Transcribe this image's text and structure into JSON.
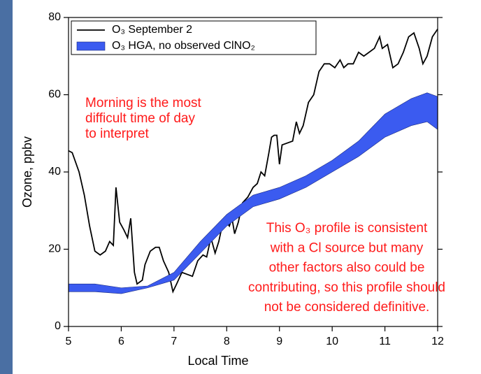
{
  "chart_data": {
    "type": "line",
    "x_label": "Local Time",
    "y_label": "Ozone, ppbv",
    "xlim": [
      5,
      12
    ],
    "xticks": [
      5,
      6,
      7,
      8,
      9,
      10,
      11,
      12
    ],
    "ylim": [
      0,
      80
    ],
    "yticks": [
      0,
      20,
      40,
      60,
      80
    ],
    "legend": "upper left",
    "series": [
      {
        "name": "O₃ September 2",
        "type": "line",
        "color": "#000000",
        "x": [
          5.0,
          5.07,
          5.2,
          5.3,
          5.4,
          5.5,
          5.6,
          5.7,
          5.78,
          5.85,
          5.9,
          5.97,
          6.05,
          6.12,
          6.18,
          6.25,
          6.3,
          6.4,
          6.45,
          6.55,
          6.65,
          6.72,
          6.8,
          6.9,
          6.98,
          7.05,
          7.15,
          7.25,
          7.35,
          7.45,
          7.55,
          7.62,
          7.7,
          7.78,
          7.85,
          7.92,
          8.0,
          8.05,
          8.1,
          8.15,
          8.22,
          8.3,
          8.4,
          8.5,
          8.58,
          8.65,
          8.72,
          8.8,
          8.85,
          8.9,
          8.95,
          9.0,
          9.05,
          9.15,
          9.25,
          9.32,
          9.38,
          9.45,
          9.55,
          9.65,
          9.75,
          9.85,
          9.95,
          10.05,
          10.15,
          10.22,
          10.3,
          10.4,
          10.5,
          10.6,
          10.7,
          10.8,
          10.9,
          10.95,
          11.05,
          11.15,
          11.25,
          11.35,
          11.45,
          11.55,
          11.65,
          11.72,
          11.8,
          11.9,
          12.0
        ],
        "values": [
          45.5,
          45,
          40,
          34,
          26,
          19.5,
          18.5,
          19.5,
          22,
          21,
          36,
          27,
          25,
          23,
          28,
          14,
          11,
          12,
          16,
          19.5,
          20.5,
          20.5,
          17,
          14,
          9,
          11,
          14,
          13.5,
          13,
          17,
          18.5,
          18,
          23,
          19,
          22,
          26.5,
          27,
          26,
          28,
          24,
          27,
          32,
          33.5,
          36,
          37,
          40,
          39,
          45,
          49,
          49.5,
          49.5,
          42,
          47,
          47.5,
          48,
          53,
          50,
          52,
          58,
          60,
          66,
          68,
          68,
          67,
          69,
          67,
          68,
          68,
          71,
          70,
          71,
          72,
          75,
          72,
          73,
          67,
          68,
          71,
          75,
          76,
          72,
          68,
          70,
          75,
          77
        ]
      },
      {
        "name": "O₃ HGA, no observed ClNO₂",
        "type": "band",
        "color": "#3b5bf0",
        "x": [
          5,
          5.5,
          6,
          6.5,
          7,
          7.5,
          8,
          8.5,
          9,
          9.5,
          10,
          10.5,
          11,
          11.5,
          11.8,
          12
        ],
        "lower": [
          9,
          9,
          8.5,
          10,
          12,
          19,
          26,
          31,
          33,
          36,
          40,
          44,
          49,
          52,
          53,
          51
        ],
        "upper": [
          11,
          11,
          10,
          10.5,
          14,
          22,
          29,
          34,
          36,
          39,
          43,
          48,
          55,
          59,
          60.5,
          59.5
        ]
      }
    ],
    "annotations": [
      {
        "lines": [
          "Morning is the most",
          "difficult time of day",
          "to interpret"
        ]
      },
      {
        "lines": [
          "This O₃ profile is consistent",
          "with a Cl source but many",
          "other factors also could be",
          "contributing, so this profile should",
          "not be considered definitive."
        ]
      }
    ]
  }
}
